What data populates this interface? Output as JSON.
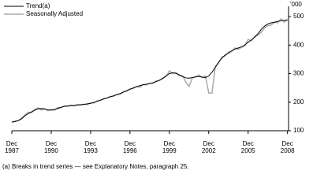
{
  "chart_data": {
    "type": "line",
    "y_unit_label": "'000",
    "footnote": "(a) Breaks in trend series — see Explanatory Notes, paragraph 25.",
    "legend": "top-left",
    "x": [
      1987.92,
      1988.17,
      1988.42,
      1988.67,
      1988.92,
      1989.17,
      1989.42,
      1989.67,
      1989.92,
      1990.17,
      1990.42,
      1990.67,
      1990.92,
      1991.17,
      1991.42,
      1991.67,
      1991.92,
      1992.17,
      1992.42,
      1992.67,
      1992.92,
      1993.17,
      1993.42,
      1993.67,
      1993.92,
      1994.17,
      1994.42,
      1994.67,
      1994.92,
      1995.17,
      1995.42,
      1995.67,
      1995.92,
      1996.17,
      1996.42,
      1996.67,
      1996.92,
      1997.17,
      1997.42,
      1997.67,
      1997.92,
      1998.17,
      1998.42,
      1998.67,
      1998.92,
      1999.17,
      1999.42,
      1999.67,
      1999.92,
      2000.17,
      2000.42,
      2000.67,
      2000.92,
      2001.17,
      2001.42,
      2001.67,
      2001.92,
      2002.17,
      2002.42,
      2002.67,
      2002.92,
      2003.17,
      2003.42,
      2003.67,
      2003.92,
      2004.17,
      2004.42,
      2004.67,
      2004.92,
      2005.17,
      2005.42,
      2005.67,
      2005.92,
      2006.17,
      2006.42,
      2006.67,
      2006.92,
      2007.17,
      2007.42,
      2007.67,
      2007.92,
      2008.17,
      2008.42,
      2008.67,
      2008.92
    ],
    "series": [
      {
        "name": "Trend(a)",
        "color": "#000000",
        "values": [
          130,
          132,
          136,
          142,
          152,
          160,
          166,
          172,
          177,
          178,
          176,
          173,
          172,
          174,
          178,
          182,
          185,
          187,
          188,
          189,
          190,
          191,
          192,
          194,
          196,
          199,
          203,
          207,
          211,
          215,
          219,
          222,
          226,
          230,
          235,
          240,
          245,
          250,
          254,
          258,
          261,
          263,
          265,
          268,
          272,
          277,
          283,
          292,
          300,
          303,
          301,
          296,
          290,
          285,
          284,
          286,
          289,
          290,
          288,
          286,
          292,
          305,
          322,
          340,
          355,
          365,
          372,
          380,
          386,
          390,
          394,
          400,
          410,
          418,
          428,
          440,
          455,
          466,
          474,
          478,
          480,
          483,
          485,
          487,
          488
        ]
      },
      {
        "name": "Seasonally Adjusted",
        "color": "#aaaaaa",
        "values": [
          130,
          134,
          135,
          145,
          155,
          165,
          163,
          175,
          180,
          172,
          178,
          170,
          175,
          172,
          182,
          180,
          188,
          185,
          190,
          187,
          192,
          190,
          193,
          191,
          198,
          197,
          205,
          206,
          213,
          214,
          220,
          221,
          228,
          228,
          237,
          239,
          247,
          248,
          256,
          252,
          262,
          260,
          267,
          266,
          275,
          276,
          285,
          290,
          310,
          300,
          304,
          292,
          293,
          270,
          255,
          285,
          288,
          295,
          286,
          292,
          232,
          232,
          325,
          338,
          358,
          362,
          375,
          378,
          390,
          385,
          392,
          398,
          420,
          415,
          430,
          435,
          445,
          460,
          468,
          470,
          480,
          478,
          492,
          480,
          490
        ]
      }
    ],
    "xlim": [
      1987.92,
      2009.0
    ],
    "xticks": [
      {
        "value": 1987.92,
        "label": "Dec 1987"
      },
      {
        "value": 1990.92,
        "label": "Dec 1990"
      },
      {
        "value": 1993.92,
        "label": "Dec 1993"
      },
      {
        "value": 1996.92,
        "label": "Dec 1996"
      },
      {
        "value": 1999.92,
        "label": "Dec 1999"
      },
      {
        "value": 2002.92,
        "label": "Dec 2002"
      },
      {
        "value": 2005.92,
        "label": "Dec 2005"
      },
      {
        "value": 2008.92,
        "label": "Dec 2008"
      }
    ],
    "ylim": [
      100,
      520
    ],
    "yticks": [
      100,
      200,
      300,
      400,
      500
    ]
  }
}
